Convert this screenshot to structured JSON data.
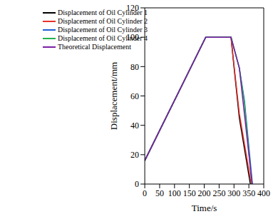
{
  "chart_data": {
    "type": "line",
    "x_label": "Time/s",
    "y_label": "Displacement/mm",
    "xlim": [
      0,
      400
    ],
    "xticks": [
      0,
      50,
      100,
      150,
      200,
      250,
      300,
      350,
      400
    ],
    "ylim": [
      0,
      120
    ],
    "yticks": [
      0,
      20,
      40,
      60,
      80,
      100,
      120
    ],
    "grid": false,
    "legend": "upper left",
    "series": [
      {
        "name": "Displacement of Oil Cylinder 1",
        "color": "#000000",
        "x": [
          0,
          205,
          290,
          300,
          318,
          355
        ],
        "values": [
          16,
          100,
          100,
          80,
          45,
          0
        ]
      },
      {
        "name": "Displacement of Oil Cylinder 2",
        "color": "#e8302a",
        "x": [
          0,
          205,
          290,
          300,
          318,
          358
        ],
        "values": [
          16,
          100,
          100,
          81,
          48,
          0
        ]
      },
      {
        "name": "Displacement of Oil Cylinder 3",
        "color": "#1f5fd6",
        "x": [
          0,
          205,
          290,
          318,
          335,
          362
        ],
        "values": [
          16,
          100,
          100,
          79,
          57,
          0
        ]
      },
      {
        "name": "Displacement of Oil Cylinder 4",
        "color": "#22b14c",
        "x": [
          0,
          205,
          290,
          318,
          335,
          360
        ],
        "values": [
          16,
          100,
          100,
          79,
          55,
          0
        ]
      },
      {
        "name": "Theoretical Displacement",
        "color": "#7a1fa2",
        "x": [
          0,
          205,
          290,
          318,
          361
        ],
        "values": [
          16,
          100,
          100,
          79,
          0
        ]
      }
    ]
  }
}
